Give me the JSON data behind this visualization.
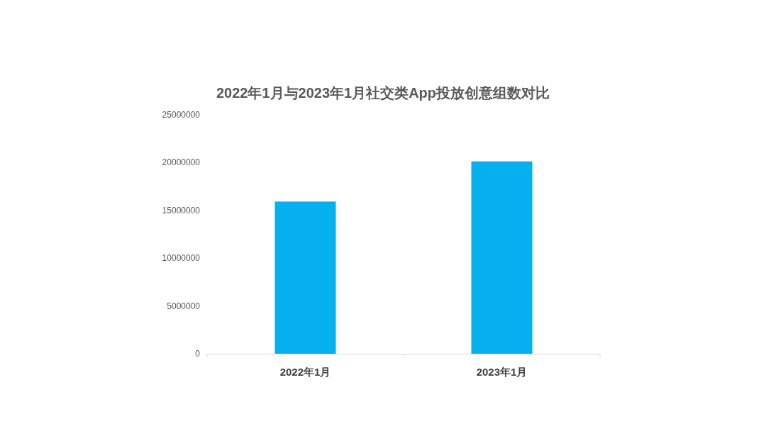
{
  "chart_data": {
    "type": "bar",
    "title": "2022年1月与2023年1月社交类App投放创意组数对比",
    "categories": [
      "2022年1月",
      "2023年1月"
    ],
    "values": [
      15900000,
      20100000
    ],
    "color": "#06b0ef",
    "ylim": [
      0,
      25000000
    ],
    "yticks": [
      0,
      5000000,
      10000000,
      15000000,
      20000000,
      25000000
    ],
    "grid": false
  }
}
